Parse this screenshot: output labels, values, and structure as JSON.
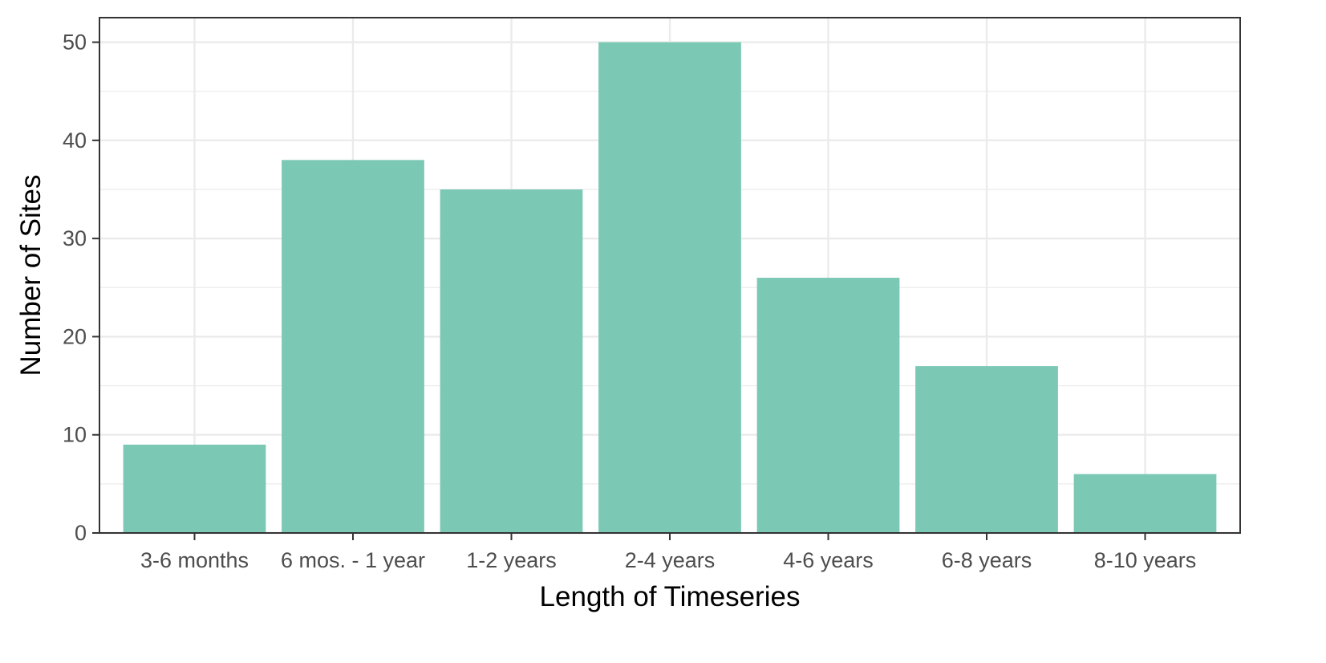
{
  "chart_data": {
    "type": "bar",
    "categories": [
      "3-6 months",
      "6 mos. - 1 year",
      "1-2 years",
      "2-4 years",
      "4-6 years",
      "6-8 years",
      "8-10 years"
    ],
    "values": [
      9,
      38,
      35,
      50,
      26,
      17,
      6
    ],
    "title": "",
    "xlabel": "Length of Timeseries",
    "ylabel": "Number of Sites",
    "ylim": [
      0,
      52.5
    ],
    "yticks": [
      0,
      10,
      20,
      30,
      40,
      50
    ],
    "grid": true,
    "legend": "none",
    "colors": {
      "bar": "#7bc8b5",
      "grid": "#ebebeb",
      "panel_border": "#333333",
      "tick_label": "#4d4d4d",
      "axis_title": "#000000"
    }
  }
}
